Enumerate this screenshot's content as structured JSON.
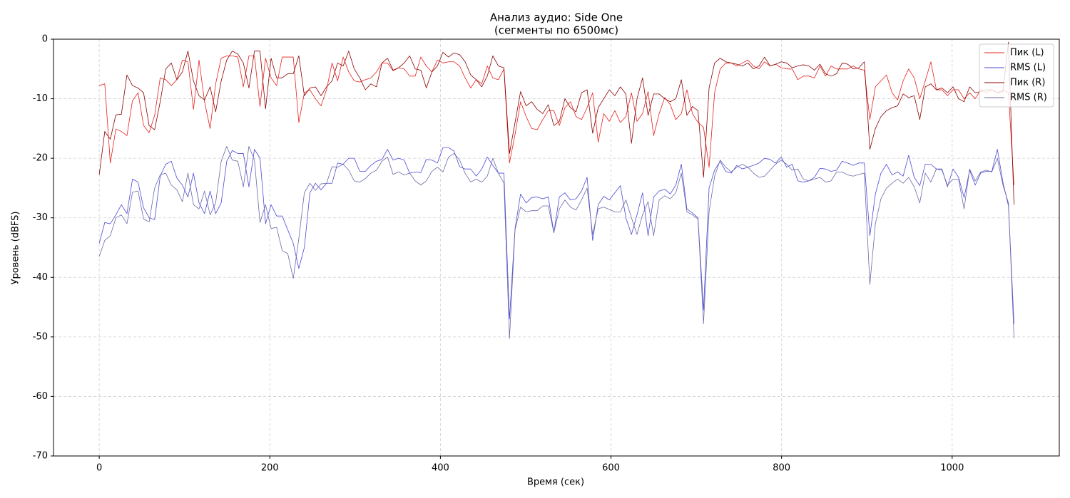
{
  "chart_data": {
    "type": "line",
    "title": "Анализ аудио: Side One",
    "subtitle": "(сегменты по 6500мс)",
    "xlabel": "Время (сек)",
    "ylabel": "Уровень (dBFS)",
    "xlim": [
      -53.6,
      1125.6
    ],
    "ylim": [
      -70,
      0
    ],
    "xticks": [
      0,
      200,
      400,
      600,
      800,
      1000
    ],
    "yticks": [
      -70,
      -60,
      -50,
      -40,
      -30,
      -20,
      -10,
      0
    ],
    "grid": true,
    "legend": "upper right",
    "x": [
      0,
      6.5,
      13,
      19.5,
      26,
      32.5,
      39,
      45.5,
      52,
      58.5,
      65,
      71.5,
      78,
      84.5,
      91,
      97.5,
      104,
      110.5,
      117,
      123.5,
      130,
      136.5,
      143,
      149.5,
      156,
      162.5,
      169,
      175.5,
      182,
      188.5,
      195,
      201.5,
      208,
      214.5,
      221,
      227.5,
      234,
      240.5,
      247,
      253.5,
      260,
      266.5,
      273,
      279.5,
      286,
      292.5,
      299,
      305.5,
      312,
      318.5,
      325,
      331.5,
      338,
      344.5,
      351,
      357.5,
      364,
      370.5,
      377,
      383.5,
      390,
      396.5,
      403,
      409.5,
      416,
      422.5,
      429,
      435.5,
      442,
      448.5,
      455,
      461.5,
      468,
      474.5,
      481,
      487.5,
      494,
      500.5,
      507,
      513.5,
      520,
      526.5,
      533,
      539.5,
      546,
      552.5,
      559,
      565.5,
      572,
      578.5,
      585,
      591.5,
      598,
      604.5,
      611,
      617.5,
      624,
      630.5,
      637,
      643.5,
      650,
      656.5,
      663,
      669.5,
      676,
      682.5,
      689,
      695.5,
      702,
      708.5,
      715,
      721.5,
      728,
      734.5,
      741,
      747.5,
      754,
      760.5,
      767,
      773.5,
      780,
      786.5,
      793,
      799.5,
      806,
      812.5,
      819,
      825.5,
      832,
      838.5,
      845,
      851.5,
      858,
      864.5,
      871,
      877.5,
      884,
      890.5,
      897,
      903.5,
      910,
      916.5,
      923,
      929.5,
      936,
      942.5,
      949,
      955.5,
      962,
      968.5,
      975,
      981.5,
      988,
      994.5,
      1001,
      1007.5,
      1014,
      1020.5,
      1027,
      1033.5,
      1040,
      1046.5,
      1053,
      1059.5,
      1066,
      1072.5
    ],
    "series": [
      {
        "name": "Пик (L)",
        "color": "#e8201c",
        "values": [
          -7.8,
          -7.5,
          -20.8,
          -15.1,
          -15.5,
          -16.2,
          -10.3,
          -9,
          -14.5,
          -15.7,
          -12.8,
          -6.5,
          -6.8,
          -7.8,
          -6.8,
          -3.5,
          -3.8,
          -11.8,
          -3.5,
          -10.5,
          -15,
          -7.5,
          -3.2,
          -2.8,
          -2.8,
          -3,
          -8,
          -2.8,
          -2.8,
          -11.3,
          -3.2,
          -6.5,
          -7.8,
          -3,
          -3,
          -3,
          -14,
          -9,
          -8.5,
          -10,
          -11.2,
          -8.5,
          -4,
          -7,
          -3,
          -5.5,
          -7,
          -7.2,
          -6.8,
          -6.5,
          -5.5,
          -4,
          -4,
          -5.3,
          -4.8,
          -5,
          -6.2,
          -6.2,
          -3,
          -4.5,
          -5.5,
          -3.5,
          -4,
          -3.8,
          -3.8,
          -4.5,
          -6.5,
          -8.2,
          -6.8,
          -7.5,
          -4.5,
          -6.5,
          -6.8,
          -5,
          -20.8,
          -16,
          -10.5,
          -13,
          -15,
          -15.2,
          -13.5,
          -12,
          -12,
          -14.5,
          -11.5,
          -10.5,
          -13,
          -13.5,
          -11.5,
          -9,
          -17.3,
          -12.5,
          -13.8,
          -12,
          -14,
          -13,
          -9,
          -13.8,
          -12.5,
          -8.8,
          -16.2,
          -12.5,
          -9.8,
          -11,
          -13.5,
          -12.5,
          -8.5,
          -12.5,
          -14,
          -14.8,
          -21.5,
          -9,
          -5,
          -4,
          -4,
          -4.5,
          -4,
          -3.5,
          -4.5,
          -5,
          -3.8,
          -4.5,
          -4.2,
          -4.8,
          -5,
          -5,
          -6.8,
          -6.2,
          -6.2,
          -6.5,
          -4.5,
          -6.2,
          -4.5,
          -5,
          -5,
          -5,
          -4.5,
          -5,
          -5.2,
          -13.5,
          -8,
          -7,
          -6,
          -9,
          -10.2,
          -7,
          -5,
          -6.5,
          -10,
          -7,
          -3.8,
          -8.5,
          -8.5,
          -9.5,
          -8.5,
          -8.5,
          -10,
          -9,
          -10,
          -8.5,
          -9,
          -8.5,
          -9,
          -8.5,
          -9,
          -24.5
        ]
      },
      {
        "name": "RMS (L)",
        "color": "#4a4ad8",
        "values": [
          -34.3,
          -30.8,
          -31,
          -29.5,
          -27.8,
          -29.3,
          -23.5,
          -24,
          -28.3,
          -30,
          -30.3,
          -23,
          -21,
          -20.5,
          -23.3,
          -24.5,
          -26.5,
          -22.5,
          -27.5,
          -29.3,
          -25.5,
          -29.3,
          -27.5,
          -20.5,
          -18.7,
          -19.2,
          -19.2,
          -24.8,
          -18.5,
          -20,
          -31,
          -27.8,
          -29.7,
          -29.7,
          -32,
          -34.3,
          -38.5,
          -35,
          -25.8,
          -24.2,
          -25.3,
          -24.2,
          -24.2,
          -20.8,
          -21,
          -20,
          -20,
          -22.2,
          -22.2,
          -21.2,
          -20.5,
          -20.2,
          -18.5,
          -20.3,
          -20,
          -20.3,
          -22.5,
          -22.3,
          -22.4,
          -20.2,
          -20.3,
          -20.8,
          -18.2,
          -18.2,
          -18.8,
          -21.4,
          -21.8,
          -21.8,
          -23,
          -21.8,
          -19.8,
          -21.2,
          -22.5,
          -22.5,
          -47,
          -31.8,
          -26,
          -27.5,
          -26.6,
          -26.5,
          -26.8,
          -26.5,
          -32.5,
          -26.5,
          -25.8,
          -27,
          -26.8,
          -25.5,
          -23.2,
          -33.8,
          -27.8,
          -26.4,
          -27,
          -25.8,
          -24.6,
          -30,
          -32.8,
          -29.5,
          -25.8,
          -33,
          -26.5,
          -25.5,
          -25.2,
          -26,
          -24.5,
          -21,
          -28.5,
          -29.2,
          -30,
          -45.5,
          -25,
          -22,
          -20.5,
          -22.2,
          -22.5,
          -21.2,
          -21.8,
          -21.5,
          -21.2,
          -20.8,
          -20,
          -20.2,
          -20.8,
          -19.8,
          -21.5,
          -21,
          -23.8,
          -24,
          -23.8,
          -23.2,
          -21.7,
          -21.8,
          -22.2,
          -22,
          -20.5,
          -20.8,
          -21.2,
          -20.8,
          -20.8,
          -33,
          -26,
          -22.5,
          -21,
          -22.8,
          -22.3,
          -23,
          -19.5,
          -23.2,
          -24.6,
          -21,
          -21,
          -21.8,
          -21.8,
          -24.8,
          -21.8,
          -23.2,
          -26.6,
          -22,
          -24.5,
          -22.5,
          -22.2,
          -22.2,
          -18.5,
          -24,
          -28,
          -47.8
        ]
      },
      {
        "name": "Пик (R)",
        "color": "#8b0000",
        "values": [
          -22.8,
          -15.5,
          -16.8,
          -12.7,
          -12.6,
          -6,
          -7.8,
          -8.2,
          -9,
          -14.5,
          -15.2,
          -10.5,
          -5,
          -4,
          -6.8,
          -5.5,
          -2,
          -7,
          -9.5,
          -10.2,
          -8,
          -12.2,
          -7,
          -3.5,
          -2,
          -2.5,
          -4,
          -8.2,
          -2,
          -2,
          -11.7,
          -3.2,
          -6.5,
          -6.5,
          -5.8,
          -5.8,
          -2.8,
          -9.5,
          -8.2,
          -8,
          -9.5,
          -8,
          -7,
          -4,
          -4.5,
          -2,
          -5,
          -6.5,
          -8.5,
          -7.5,
          -8,
          -4,
          -3.2,
          -5.2,
          -4.8,
          -4,
          -2.8,
          -5,
          -5.2,
          -8.2,
          -5.5,
          -4.5,
          -2.2,
          -3,
          -2.3,
          -2.6,
          -3.8,
          -6,
          -6.8,
          -8,
          -6.2,
          -2.8,
          -4.5,
          -4.8,
          -19.2,
          -14,
          -8.8,
          -11.2,
          -10.5,
          -11.8,
          -12.5,
          -11,
          -14.5,
          -13.8,
          -10,
          -11.5,
          -12.2,
          -9,
          -8.5,
          -15.8,
          -11.5,
          -10,
          -8.5,
          -9.5,
          -8,
          -9.2,
          -17.5,
          -10,
          -6.5,
          -12.8,
          -9.2,
          -9.2,
          -10,
          -10.5,
          -10,
          -6.8,
          -12.8,
          -11.3,
          -12,
          -23.2,
          -8.2,
          -4,
          -3.2,
          -3.8,
          -4,
          -4.2,
          -4.5,
          -4,
          -5,
          -4.5,
          -3,
          -4.5,
          -4.2,
          -3.8,
          -4,
          -4.8,
          -4.5,
          -4.3,
          -4.5,
          -5.2,
          -4.2,
          -5.8,
          -6.2,
          -5.8,
          -4,
          -4.2,
          -5,
          -4.8,
          -3.8,
          -18.5,
          -15,
          -13,
          -12,
          -11.5,
          -11.2,
          -9.2,
          -9.8,
          -9.5,
          -13.5,
          -8,
          -7.5,
          -8.5,
          -8.2,
          -9,
          -8,
          -10,
          -10.5,
          -8,
          -9,
          -8.8,
          -8.5,
          -8.5,
          -9,
          -8.8,
          -0.5,
          -27.8
        ]
      },
      {
        "name": "RMS (R)",
        "color": "#6a6aa8",
        "values": [
          -36.5,
          -33.8,
          -33,
          -30,
          -29.5,
          -31,
          -25.7,
          -25.5,
          -30.2,
          -30.7,
          -25,
          -22.8,
          -22.5,
          -24.5,
          -25.3,
          -27.3,
          -22.5,
          -27.8,
          -28.5,
          -25.5,
          -29.5,
          -27.5,
          -20.5,
          -18,
          -20.3,
          -20.5,
          -24.8,
          -18,
          -20.3,
          -30.8,
          -27.8,
          -31.8,
          -31.6,
          -35.5,
          -36,
          -40.2,
          -33.5,
          -25.8,
          -24.2,
          -25.4,
          -24.3,
          -24.2,
          -21.4,
          -21.5,
          -21,
          -22,
          -23.8,
          -24,
          -23.4,
          -22.5,
          -22,
          -20.5,
          -19.8,
          -22.7,
          -22.3,
          -22.8,
          -22.5,
          -23.8,
          -24.5,
          -23.8,
          -22.2,
          -21.5,
          -22.3,
          -19.8,
          -19.2,
          -20.3,
          -22.5,
          -24,
          -23.5,
          -24,
          -23,
          -20,
          -22.5,
          -24.2,
          -50.3,
          -32,
          -28.2,
          -29,
          -28.8,
          -28.8,
          -28,
          -28,
          -32.5,
          -28.5,
          -27,
          -28.2,
          -28.7,
          -27,
          -25,
          -32.8,
          -28.5,
          -28.2,
          -28.6,
          -29,
          -29,
          -27,
          -30,
          -32.8,
          -29.5,
          -27.3,
          -33,
          -27,
          -26.3,
          -26.8,
          -25.8,
          -22.5,
          -29,
          -29.5,
          -30.2,
          -47.8,
          -29,
          -23,
          -20.3,
          -21.5,
          -22.3,
          -21.5,
          -21,
          -21.5,
          -22.5,
          -23.2,
          -23,
          -22,
          -21,
          -20.3,
          -21,
          -22,
          -21.8,
          -23.5,
          -23.8,
          -23.5,
          -23.2,
          -24,
          -23.8,
          -22.3,
          -22.3,
          -22.8,
          -23,
          -22.7,
          -22.5,
          -41.2,
          -31,
          -26.8,
          -25,
          -24.2,
          -23.5,
          -24.2,
          -23.2,
          -24.8,
          -27.5,
          -22.5,
          -24,
          -21.8,
          -22,
          -24.5,
          -23.5,
          -23.5,
          -28.5,
          -21.8,
          -23.8,
          -22.3,
          -22,
          -22.3,
          -20,
          -24.5,
          -27.5,
          -50.2
        ]
      }
    ]
  }
}
